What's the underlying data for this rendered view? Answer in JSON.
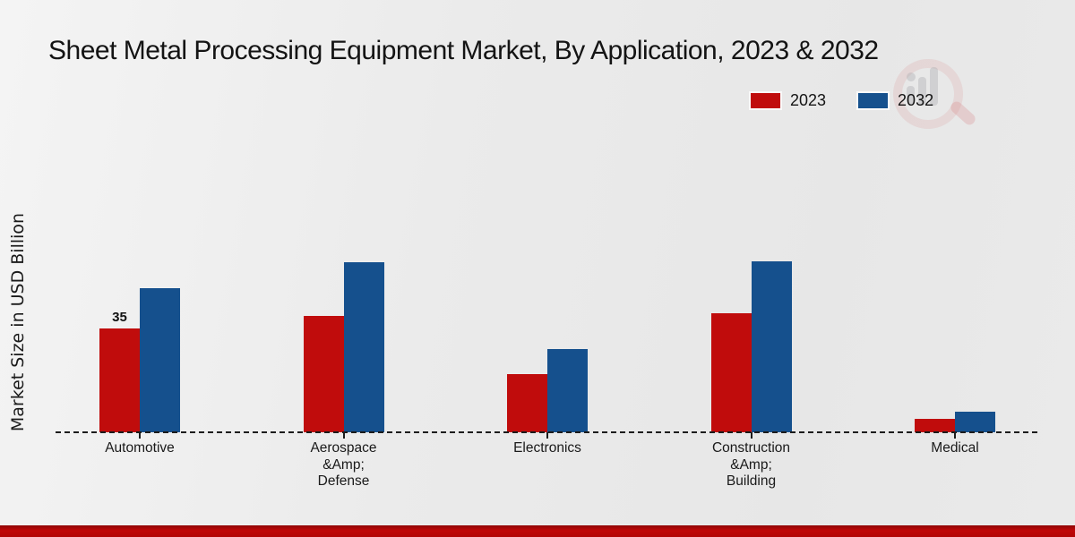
{
  "chart_data": {
    "type": "bar",
    "title": "Sheet Metal Processing Equipment Market, By Application, 2023 & 2032",
    "ylabel": "Market Size in USD Billion",
    "xlabel": "",
    "categories": [
      "Automotive",
      "Aerospace\n&Amp;\nDefense",
      "Electronics",
      "Construction\n&Amp;\nBuilding",
      "Medical"
    ],
    "series": [
      {
        "name": "2023",
        "color": "#c00c0c",
        "values": [
          35,
          39,
          19.5,
          40,
          4.5
        ]
      },
      {
        "name": "2032",
        "color": "#15508d",
        "values": [
          48.5,
          57,
          28,
          57.5,
          7
        ]
      }
    ],
    "ylim": [
      0,
      64
    ],
    "grid": false,
    "legend_position": "top-right",
    "baseline_style": "dashed",
    "annotations": [
      {
        "category_index": 0,
        "series_index": 0,
        "text": "35"
      }
    ]
  },
  "icons": {
    "watermark": "bar-chart-magnifier-logo"
  },
  "colors": {
    "background": "#ebebeb",
    "text": "#141414",
    "footer_band": "#c00707",
    "axis": "#1c1c1c"
  }
}
